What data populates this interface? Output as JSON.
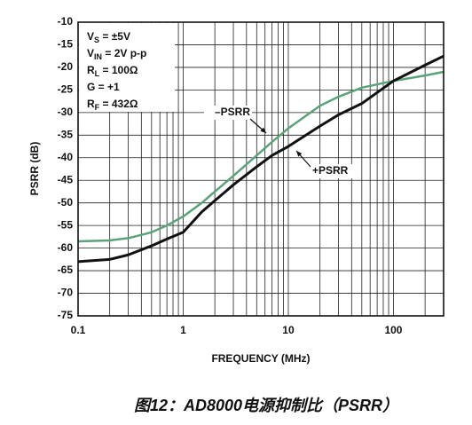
{
  "chart_data": {
    "type": "line",
    "xlabel": "FREQUENCY (MHz)",
    "ylabel": "PSRR (dB)",
    "caption": "图12：AD8000电源抑制比（PSRR）",
    "x_scale": "log",
    "xlim": [
      0.1,
      300
    ],
    "xticks": [
      0.1,
      1,
      10,
      100
    ],
    "ylim": [
      -75,
      -10
    ],
    "yticks": [
      -75,
      -70,
      -65,
      -60,
      -55,
      -50,
      -45,
      -40,
      -35,
      -30,
      -25,
      -20,
      -15,
      -10
    ],
    "grid": true,
    "minor_grid": true,
    "x": [
      0.1,
      0.2,
      0.3,
      0.5,
      0.7,
      1,
      1.5,
      2,
      3,
      5,
      7,
      10,
      20,
      30,
      50,
      100,
      200,
      300
    ],
    "series": [
      {
        "name": "–PSRR",
        "color": "#5aa37a",
        "values": [
          -58.5,
          -58.3,
          -57.8,
          -56.5,
          -55,
          -53,
          -50,
          -47.5,
          -44,
          -39.5,
          -36.5,
          -33.5,
          -28.5,
          -26.5,
          -24.5,
          -23,
          -21.8,
          -21
        ]
      },
      {
        "name": "+PSRR",
        "color": "#111111",
        "values": [
          -63,
          -62.5,
          -61.5,
          -59.5,
          -58,
          -56.5,
          -52,
          -49.5,
          -46,
          -42,
          -39.5,
          -37.5,
          -33,
          -30.5,
          -28,
          -23,
          -19.5,
          -17.5
        ]
      }
    ],
    "conditions": [
      [
        "V",
        "S",
        " = ±5V"
      ],
      [
        "V",
        "IN",
        " = 2V p-p"
      ],
      [
        "R",
        "L",
        " = 100Ω"
      ],
      [
        "G = +1"
      ],
      [
        "R",
        "F",
        " = 432Ω"
      ]
    ]
  }
}
